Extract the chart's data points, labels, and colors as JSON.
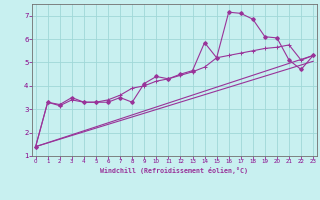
{
  "xlabel": "Windchill (Refroidissement éolien,°C)",
  "background_color": "#c8f0f0",
  "grid_color": "#a0d8d8",
  "line_color": "#993399",
  "x_ticks": [
    0,
    1,
    2,
    3,
    4,
    5,
    6,
    7,
    8,
    9,
    10,
    11,
    12,
    13,
    14,
    15,
    16,
    17,
    18,
    19,
    20,
    21,
    22,
    23
  ],
  "y_ticks": [
    1,
    2,
    3,
    4,
    5,
    6,
    7
  ],
  "ylim": [
    1.0,
    7.5
  ],
  "xlim": [
    -0.3,
    23.3
  ],
  "series1_x": [
    0,
    1,
    2,
    3,
    4,
    5,
    6,
    7,
    8,
    9,
    10,
    11,
    12,
    13,
    14,
    15,
    16,
    17,
    18,
    19,
    20,
    21,
    22,
    23
  ],
  "series1_y": [
    1.4,
    3.3,
    3.2,
    3.5,
    3.3,
    3.3,
    3.3,
    3.5,
    3.3,
    4.1,
    4.4,
    4.3,
    4.5,
    4.65,
    5.85,
    5.2,
    7.15,
    7.1,
    6.85,
    6.1,
    6.05,
    5.1,
    4.7,
    5.3
  ],
  "series2_x": [
    0,
    1,
    2,
    3,
    4,
    5,
    6,
    7,
    8,
    9,
    10,
    11,
    12,
    13,
    14,
    15,
    16,
    17,
    18,
    19,
    20,
    21,
    22,
    23
  ],
  "series2_y": [
    1.4,
    3.3,
    3.15,
    3.4,
    3.3,
    3.3,
    3.4,
    3.6,
    3.9,
    4.0,
    4.2,
    4.3,
    4.45,
    4.6,
    4.8,
    5.2,
    5.3,
    5.4,
    5.5,
    5.6,
    5.65,
    5.75,
    5.1,
    5.3
  ],
  "series3_x": [
    0,
    23
  ],
  "series3_y": [
    1.4,
    5.3
  ],
  "series4_x": [
    0,
    23
  ],
  "series4_y": [
    1.4,
    5.05
  ]
}
